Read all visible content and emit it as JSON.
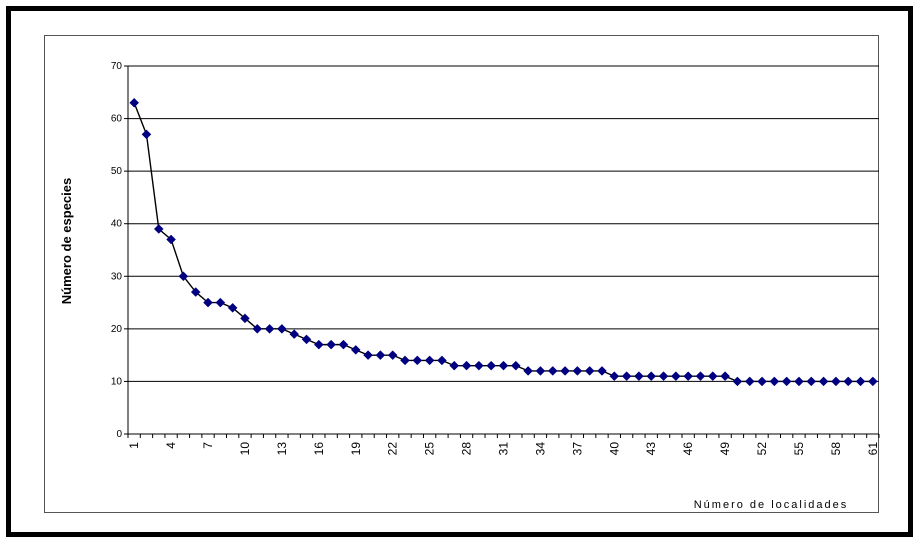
{
  "chart_data": {
    "type": "line",
    "xlabel": "Número de localidades",
    "ylabel": "Número de especies",
    "ylim": [
      0,
      70
    ],
    "yticks": [
      "0",
      "10",
      "20",
      "30",
      "40",
      "50",
      "60",
      "70"
    ],
    "xticks": [
      "1",
      "4",
      "7",
      "10",
      "13",
      "16",
      "19",
      "22",
      "25",
      "28",
      "31",
      "34",
      "37",
      "40",
      "43",
      "46",
      "49",
      "52",
      "55",
      "58",
      "61"
    ],
    "grid": "horizontal",
    "legend": "none",
    "series": [
      {
        "color": "#000080",
        "x": [
          1,
          2,
          3,
          4,
          5,
          6,
          7,
          8,
          9,
          10,
          11,
          12,
          13,
          14,
          15,
          16,
          17,
          18,
          19,
          20,
          21,
          22,
          23,
          24,
          25,
          26,
          27,
          28,
          29,
          30,
          31,
          32,
          33,
          34,
          35,
          36,
          37,
          38,
          39,
          40,
          41,
          42,
          43,
          44,
          45,
          46,
          47,
          48,
          49,
          50,
          51,
          52,
          53,
          54,
          55,
          56,
          57,
          58,
          59,
          60,
          61
        ],
        "values": [
          63,
          57,
          39,
          37,
          30,
          27,
          25,
          25,
          24,
          22,
          20,
          20,
          20,
          19,
          18,
          17,
          17,
          17,
          16,
          15,
          15,
          15,
          14,
          14,
          14,
          14,
          13,
          13,
          13,
          13,
          13,
          13,
          12,
          12,
          12,
          12,
          12,
          12,
          12,
          11,
          11,
          11,
          11,
          11,
          11,
          11,
          11,
          11,
          11,
          10,
          10,
          10,
          10,
          10,
          10,
          10,
          10,
          10,
          10,
          10,
          10
        ]
      }
    ]
  }
}
